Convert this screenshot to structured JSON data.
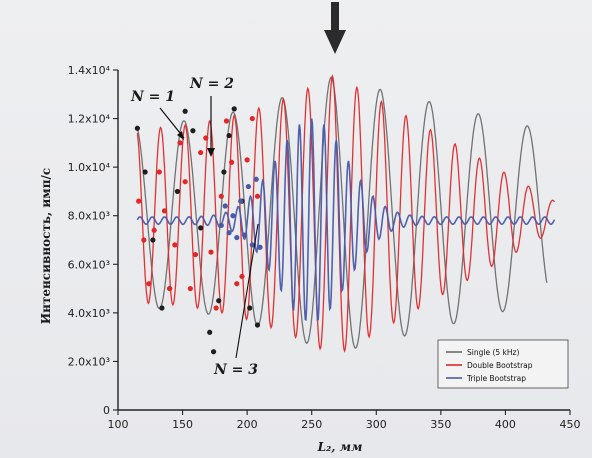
{
  "chart_data": {
    "type": "line",
    "xlabel": "L₂, мм",
    "ylabel": "Интенсивность, имп/с",
    "xlim": [
      100,
      450
    ],
    "ylim": [
      0,
      14000
    ],
    "x_ticks": [
      "100",
      "150",
      "200",
      "250",
      "300",
      "350",
      "400",
      "450"
    ],
    "y_ticks": [
      {
        "value": 0,
        "label": "0"
      },
      {
        "value": 2000,
        "label": "2.0x10³"
      },
      {
        "value": 4000,
        "label": "4.0x10³"
      },
      {
        "value": 6000,
        "label": "6.0x10³"
      },
      {
        "value": 8000,
        "label": "8.0x10³"
      },
      {
        "value": 10000,
        "label": "1.0x10⁴"
      },
      {
        "value": 12000,
        "label": "1.2x10⁴"
      },
      {
        "value": 14000,
        "label": "1.4x10⁴"
      }
    ],
    "grid": false,
    "legend_position": "bottom-right",
    "series": [
      {
        "name": "Single (5 kHz)",
        "color": "#6b6b6b",
        "x_range": [
          115,
          432
        ],
        "mean": 8000,
        "amplitude_start": 3800,
        "amplitude_peak": 5700,
        "amplitude_end": 3500,
        "peak_x": 265,
        "period": 38,
        "phase_x": 265,
        "points": [
          {
            "x": 115,
            "y": 11600
          },
          {
            "x": 121,
            "y": 9800
          },
          {
            "x": 127,
            "y": 7000
          },
          {
            "x": 134,
            "y": 4200
          },
          {
            "x": 140,
            "y": 5000
          },
          {
            "x": 146,
            "y": 9000
          },
          {
            "x": 152,
            "y": 12300
          },
          {
            "x": 158,
            "y": 11500
          },
          {
            "x": 164,
            "y": 7500
          },
          {
            "x": 171,
            "y": 3200
          },
          {
            "x": 174,
            "y": 2400
          },
          {
            "x": 178,
            "y": 4500
          },
          {
            "x": 182,
            "y": 9800
          },
          {
            "x": 186,
            "y": 11300
          },
          {
            "x": 190,
            "y": 12400
          },
          {
            "x": 196,
            "y": 8600
          },
          {
            "x": 202,
            "y": 4200
          },
          {
            "x": 208,
            "y": 3500
          }
        ]
      },
      {
        "name": "Double Bootstrap",
        "color": "#e02828",
        "x_range": [
          115,
          438
        ],
        "mean": 8000,
        "amplitude_start": 3600,
        "amplitude_peak": 5800,
        "amplitude_end": 600,
        "peak_x": 268,
        "period": 19,
        "phase_x": 266,
        "points": [
          {
            "x": 116,
            "y": 8600
          },
          {
            "x": 120,
            "y": 7000
          },
          {
            "x": 124,
            "y": 5200
          },
          {
            "x": 128,
            "y": 7400
          },
          {
            "x": 132,
            "y": 9800
          },
          {
            "x": 136,
            "y": 8200
          },
          {
            "x": 140,
            "y": 5000
          },
          {
            "x": 144,
            "y": 6800
          },
          {
            "x": 148,
            "y": 11000
          },
          {
            "x": 152,
            "y": 9400
          },
          {
            "x": 156,
            "y": 5000
          },
          {
            "x": 160,
            "y": 6400
          },
          {
            "x": 164,
            "y": 10600
          },
          {
            "x": 168,
            "y": 11200
          },
          {
            "x": 172,
            "y": 6500
          },
          {
            "x": 176,
            "y": 4200
          },
          {
            "x": 180,
            "y": 8800
          },
          {
            "x": 184,
            "y": 11900
          },
          {
            "x": 188,
            "y": 10200
          },
          {
            "x": 192,
            "y": 5200
          },
          {
            "x": 196,
            "y": 5500
          },
          {
            "x": 200,
            "y": 10300
          },
          {
            "x": 204,
            "y": 12000
          },
          {
            "x": 208,
            "y": 8800
          }
        ]
      },
      {
        "name": "Triple Bootstrap",
        "color": "#4a5aa8",
        "x_range": [
          115,
          438
        ],
        "mean": 7800,
        "amplitude_start": 150,
        "amplitude_peak": 4200,
        "amplitude_end": 150,
        "peak_x": 250,
        "period": 9.5,
        "phase_x": 250,
        "points": [
          {
            "x": 180,
            "y": 7600
          },
          {
            "x": 183,
            "y": 8400
          },
          {
            "x": 186,
            "y": 7300
          },
          {
            "x": 189,
            "y": 8000
          },
          {
            "x": 192,
            "y": 7100
          },
          {
            "x": 195,
            "y": 8600
          },
          {
            "x": 198,
            "y": 7200
          },
          {
            "x": 201,
            "y": 9200
          },
          {
            "x": 204,
            "y": 6800
          },
          {
            "x": 207,
            "y": 9500
          },
          {
            "x": 210,
            "y": 6700
          }
        ]
      }
    ],
    "annotations": [
      {
        "id": "n1",
        "label": "N = 1",
        "target": {
          "x": 150,
          "y": 10000
        }
      },
      {
        "id": "n2",
        "label": "N = 2",
        "target": {
          "x": 171,
          "y": 8600
        }
      },
      {
        "id": "n3",
        "label": "N = 3",
        "target": {
          "x": 196,
          "y": 7900
        }
      }
    ]
  }
}
